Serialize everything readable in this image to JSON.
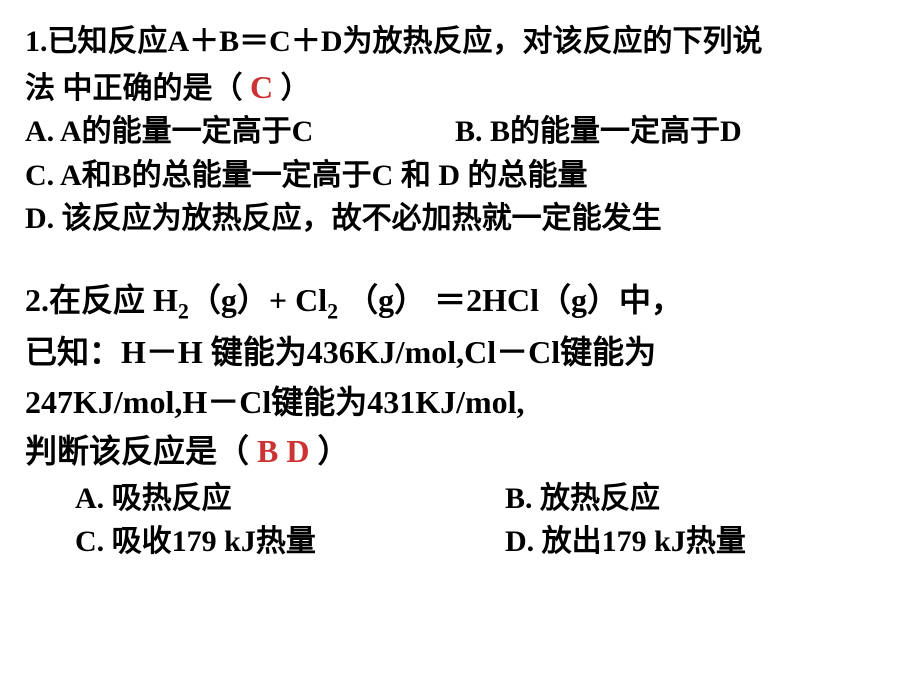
{
  "question1": {
    "stem_line1": "1.已知反应A＋B＝C＋D为放热反应，对该反应的下列说",
    "stem_line2_prefix": "法    中正确的是（ ",
    "stem_line2_suffix": "     ）",
    "answer": "C",
    "option_a": "A.    A的能量一定高于C",
    "option_b": "B.    B的能量一定高于D",
    "option_c": "C.   A和B的总能量一定高于C 和  D 的总能量",
    "option_d": "D.   该反应为放热反应，故不必加热就一定能发生"
  },
  "question2": {
    "line1_prefix": "2.在反应   H",
    "line1_mid1": "（g）+ Cl",
    "line1_suffix": " （g） ＝2HCl（g）中，",
    "sub2_1": "2",
    "sub2_2": "2",
    "line2": "已知：H－H  键能为436KJ/mol,Cl－Cl键能为",
    "line3": "247KJ/mol,H－Cl键能为431KJ/mol,",
    "line4_prefix": "判断该反应是（  ",
    "line4_suffix": "  ）",
    "answer": "B  D",
    "option_a": "A.  吸热反应",
    "option_b": "B.  放热反应",
    "option_c": "C.  吸收179 kJ热量",
    "option_d": "D. 放出179 kJ热量"
  },
  "colors": {
    "text": "#000000",
    "answer": "#cc3333",
    "background": "#ffffff"
  }
}
